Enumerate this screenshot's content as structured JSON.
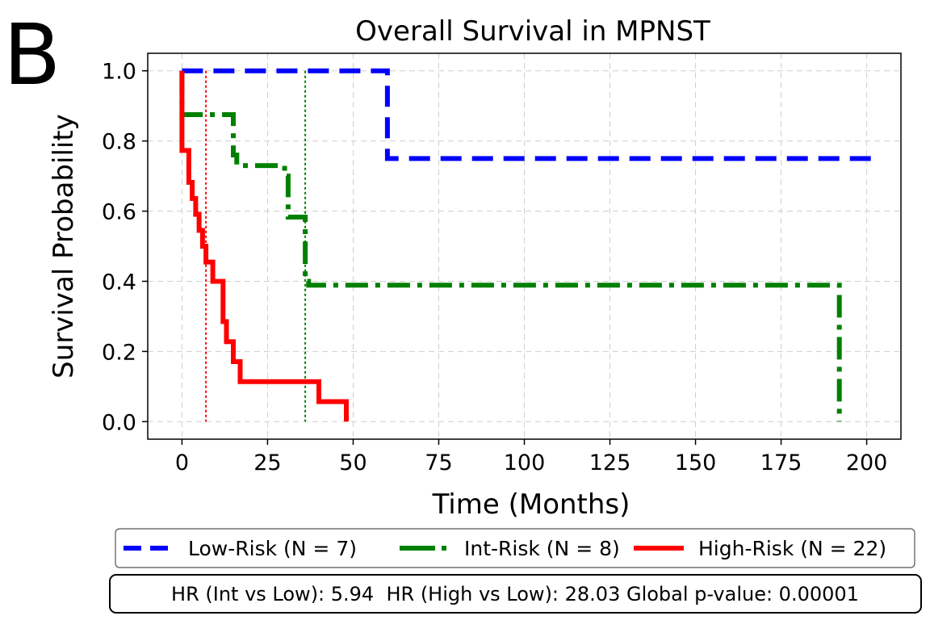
{
  "panel_label": "B",
  "chart_data": {
    "type": "line",
    "step": true,
    "title": "Overall Survival in MPNST",
    "xlabel": "Time (Months)",
    "ylabel": "Survival Probability",
    "xlim": [
      -10,
      210
    ],
    "ylim": [
      -0.05,
      1.05
    ],
    "x_ticks": [
      0,
      25,
      50,
      75,
      100,
      125,
      150,
      175,
      200
    ],
    "x_tick_labels": [
      "0",
      "25",
      "50",
      "75",
      "100",
      "125",
      "150",
      "175",
      "200"
    ],
    "y_ticks": [
      0.0,
      0.2,
      0.4,
      0.6,
      0.8,
      1.0
    ],
    "y_tick_labels": [
      "0.0",
      "0.2",
      "0.4",
      "0.6",
      "0.8",
      "1.0"
    ],
    "grid": true,
    "legend_location": "below",
    "series": [
      {
        "name": "Low-Risk (N = 7)",
        "color": "#0000ff",
        "style": "dashed",
        "x": [
          0,
          60,
          60,
          204
        ],
        "y": [
          1.0,
          1.0,
          0.75,
          0.75
        ]
      },
      {
        "name": "Int-Risk (N = 8)",
        "color": "#008000",
        "style": "dashdot",
        "x": [
          0,
          0,
          15,
          15,
          16,
          16,
          30,
          30,
          31,
          31,
          36,
          36,
          37,
          37,
          192,
          192
        ],
        "y": [
          1.0,
          0.875,
          0.875,
          0.76,
          0.76,
          0.73,
          0.73,
          0.7,
          0.7,
          0.583,
          0.583,
          0.4,
          0.4,
          0.389,
          0.389,
          0.0
        ]
      },
      {
        "name": "High-Risk (N = 22)",
        "color": "#ff0000",
        "style": "solid",
        "x": [
          0,
          0,
          2,
          2,
          3,
          3,
          4,
          4,
          5,
          5,
          6,
          6,
          7,
          7,
          9,
          9,
          12,
          12,
          13,
          13,
          15,
          15,
          17,
          17,
          24,
          24,
          40,
          40,
          48,
          48
        ],
        "y": [
          1.0,
          0.773,
          0.773,
          0.682,
          0.682,
          0.636,
          0.636,
          0.591,
          0.591,
          0.545,
          0.545,
          0.5,
          0.5,
          0.455,
          0.455,
          0.4,
          0.4,
          0.285,
          0.285,
          0.228,
          0.228,
          0.171,
          0.171,
          0.114,
          0.114,
          0.114,
          0.114,
          0.057,
          0.057,
          0.0
        ]
      }
    ],
    "median_lines": [
      {
        "series": "High-Risk (N = 22)",
        "x": 7,
        "color": "#ff0000",
        "style": "dotted"
      },
      {
        "series": "Int-Risk (N = 8)",
        "x": 36,
        "color": "#008000",
        "style": "dotted"
      }
    ],
    "stats_box": "HR (Int vs Low): 5.94  HR (High vs Low): 28.03 Global p-value: 0.00001"
  }
}
